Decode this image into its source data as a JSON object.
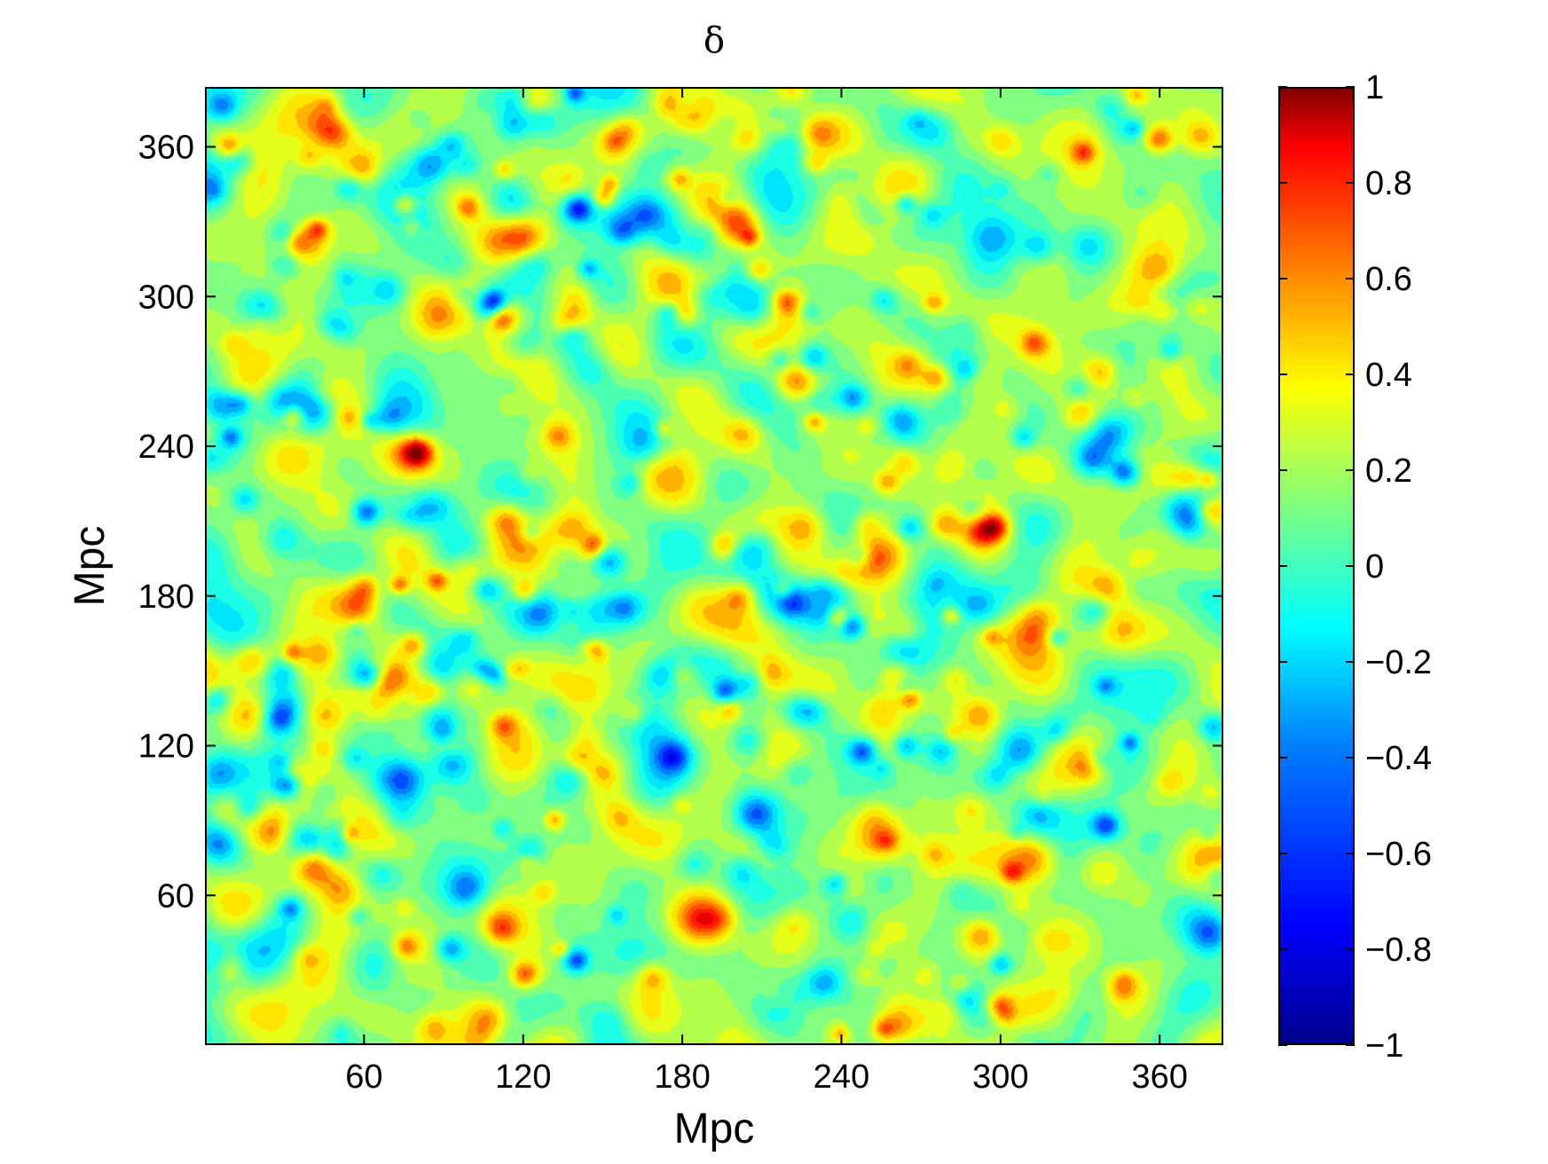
{
  "chart_data": {
    "type": "heatmap",
    "title": "δ",
    "xlabel": "Mpc",
    "ylabel": "Mpc",
    "xlim": [
      0,
      384
    ],
    "ylim": [
      0,
      384
    ],
    "x_ticks": [
      60,
      120,
      180,
      240,
      300,
      360
    ],
    "y_ticks": [
      60,
      120,
      180,
      240,
      300,
      360
    ],
    "x_tick_labels": [
      "60",
      "120",
      "180",
      "240",
      "300",
      "360"
    ],
    "y_tick_labels": [
      "60",
      "120",
      "180",
      "240",
      "300",
      "360"
    ],
    "colorbar": {
      "min": -1,
      "max": 1,
      "ticks": [
        -1,
        -0.8,
        -0.6,
        -0.4,
        -0.2,
        0,
        0.2,
        0.4,
        0.6,
        0.8,
        1
      ],
      "tick_labels": [
        "−1",
        "−0.8",
        "−0.6",
        "−0.4",
        "−0.2",
        "0",
        "0.2",
        "0.4",
        "0.6",
        "0.8",
        "1"
      ],
      "colormap": "jet"
    },
    "features": [
      {
        "x": 80,
        "y": 238,
        "value": 0.7
      },
      {
        "x": 146,
        "y": 158,
        "value": 0.75
      },
      {
        "x": 120,
        "y": 28,
        "value": 0.65
      },
      {
        "x": 298,
        "y": 208,
        "value": 0.7
      },
      {
        "x": 360,
        "y": 364,
        "value": 0.65
      },
      {
        "x": 313,
        "y": 282,
        "value": 0.55
      },
      {
        "x": 276,
        "y": 268,
        "value": 0.55
      },
      {
        "x": 196,
        "y": 200,
        "value": 0.55
      },
      {
        "x": 30,
        "y": 105,
        "value": -0.55
      },
      {
        "x": 347,
        "y": 230,
        "value": -0.5
      },
      {
        "x": 140,
        "y": 336,
        "value": -0.55
      },
      {
        "x": 340,
        "y": 88,
        "value": -0.5
      },
      {
        "x": 244,
        "y": 168,
        "value": -0.5
      },
      {
        "x": 248,
        "y": 118,
        "value": -0.5
      },
      {
        "x": 60,
        "y": 214,
        "value": -0.5
      }
    ]
  }
}
